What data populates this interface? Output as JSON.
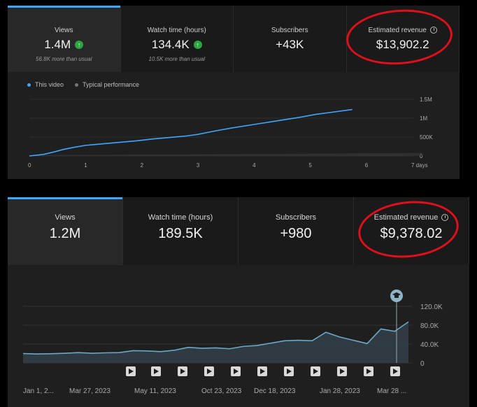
{
  "top_panel": {
    "tabs": [
      {
        "label": "Views",
        "value": "1.4M",
        "sub": "56.8K more than usual",
        "up": true
      },
      {
        "label": "Watch time (hours)",
        "value": "134.4K",
        "sub": "10.5K more than usual",
        "up": true
      },
      {
        "label": "Subscribers",
        "value": "+43K",
        "sub": "",
        "up": false
      },
      {
        "label": "Estimated revenue",
        "value": "$13,902.2",
        "sub": "",
        "up": false,
        "clock": true
      }
    ],
    "legend": [
      {
        "label": "This video",
        "color": "#3ea6ff"
      },
      {
        "label": "Typical performance",
        "color": "#777777"
      }
    ]
  },
  "bottom_panel": {
    "tabs": [
      {
        "label": "Views",
        "value": "1.2M"
      },
      {
        "label": "Watch time (hours)",
        "value": "189.5K"
      },
      {
        "label": "Subscribers",
        "value": "+980"
      },
      {
        "label": "Estimated revenue",
        "value": "$9,378.02",
        "clock": true
      }
    ],
    "marker_icon": "graduation-cap-icon",
    "play_icon": "play-icon"
  },
  "chart_data": [
    {
      "type": "line",
      "xlabel": "",
      "ylabel": "",
      "x_ticks": [
        "0",
        "1",
        "2",
        "3",
        "4",
        "5",
        "6",
        "7 days"
      ],
      "y_ticks": [
        "0",
        "500K",
        "1M",
        "1.5M"
      ],
      "xlim": [
        0,
        7
      ],
      "ylim": [
        0,
        1500000
      ],
      "grid": true,
      "series": [
        {
          "name": "This video",
          "color": "#3ea6ff",
          "x": [
            0,
            0.25,
            0.45,
            0.6,
            0.8,
            1.0,
            1.3,
            1.6,
            1.9,
            2.2,
            2.5,
            2.8,
            3.0,
            3.3,
            3.6,
            3.9,
            4.2,
            4.5,
            4.8,
            5.1,
            5.4,
            5.75
          ],
          "y": [
            0,
            40000,
            110000,
            170000,
            230000,
            280000,
            320000,
            360000,
            400000,
            450000,
            490000,
            530000,
            570000,
            660000,
            740000,
            810000,
            880000,
            950000,
            1020000,
            1100000,
            1160000,
            1230000
          ]
        },
        {
          "name": "Typical performance",
          "color": "#777777",
          "x": [
            0,
            7
          ],
          "y": [
            20000,
            80000
          ]
        }
      ]
    },
    {
      "type": "area",
      "xlabel": "",
      "ylabel": "",
      "x_ticks": [
        "Jan 1, 2...",
        "Mar 27, 2023",
        "May 11, 2023",
        "Oct 23, 2023",
        "Dec 18, 2023",
        "Jan 28, 2023",
        "Mar 28 ..."
      ],
      "y_ticks": [
        "0",
        "40.0K",
        "80.0K",
        "120.0K"
      ],
      "xlim": [
        0,
        28
      ],
      "ylim": [
        0,
        120000
      ],
      "grid": true,
      "series": [
        {
          "name": "",
          "color": "#6aa8c8",
          "x": [
            0,
            1,
            2,
            3,
            4,
            5,
            6,
            7,
            8,
            9,
            10,
            11,
            12,
            13,
            14,
            15,
            16,
            17,
            18,
            19,
            20,
            21,
            22,
            23,
            24,
            25,
            26,
            27,
            28
          ],
          "y": [
            20000,
            19000,
            19500,
            20500,
            22000,
            20500,
            21500,
            22000,
            26000,
            25500,
            24000,
            27000,
            33000,
            31000,
            32000,
            30000,
            35000,
            37000,
            42000,
            47000,
            48000,
            47000,
            65000,
            55000,
            48000,
            41000,
            72000,
            67000,
            87000
          ]
        }
      ]
    }
  ]
}
